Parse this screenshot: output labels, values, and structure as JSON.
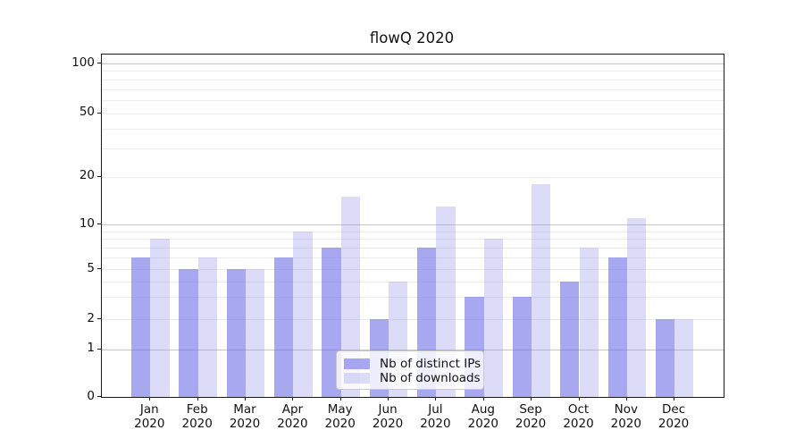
{
  "chart_data": {
    "type": "bar",
    "title": "flowQ 2020",
    "categories": [
      "Jan",
      "Feb",
      "Mar",
      "Apr",
      "May",
      "Jun",
      "Jul",
      "Aug",
      "Sep",
      "Oct",
      "Nov",
      "Dec"
    ],
    "category_year": "2020",
    "series": [
      {
        "name": "Nb of distinct IPs",
        "color": "rgba(110,110,230,0.6)",
        "values": [
          6,
          5,
          5,
          6,
          7,
          2,
          7,
          3,
          3,
          4,
          6,
          2
        ]
      },
      {
        "name": "Nb of downloads",
        "color": "rgba(138,138,232,0.3)",
        "values": [
          8,
          6,
          5,
          9,
          15,
          4,
          13,
          8,
          18,
          7,
          11,
          2
        ]
      }
    ],
    "xlabel": "",
    "ylabel": "",
    "yscale": "symlog",
    "y_tick_labels": [
      0,
      1,
      2,
      5,
      10,
      20,
      50,
      100
    ],
    "y_major_gridlines": [
      1,
      10,
      100
    ],
    "y_minor_gridlines": [
      2,
      3,
      4,
      5,
      6,
      7,
      8,
      9,
      20,
      30,
      40,
      50,
      60,
      70,
      80,
      90
    ],
    "ylim": [
      0,
      110
    ],
    "grid": true,
    "legend_position": "lower center"
  },
  "colors": {
    "major_grid": "#c6c6c6",
    "minor_grid": "#ececec",
    "spine": "#1a1a1a",
    "text": "#111111",
    "legend_border": "#c9c9c9",
    "legend_bg": "rgba(255,255,255,0.8)"
  }
}
